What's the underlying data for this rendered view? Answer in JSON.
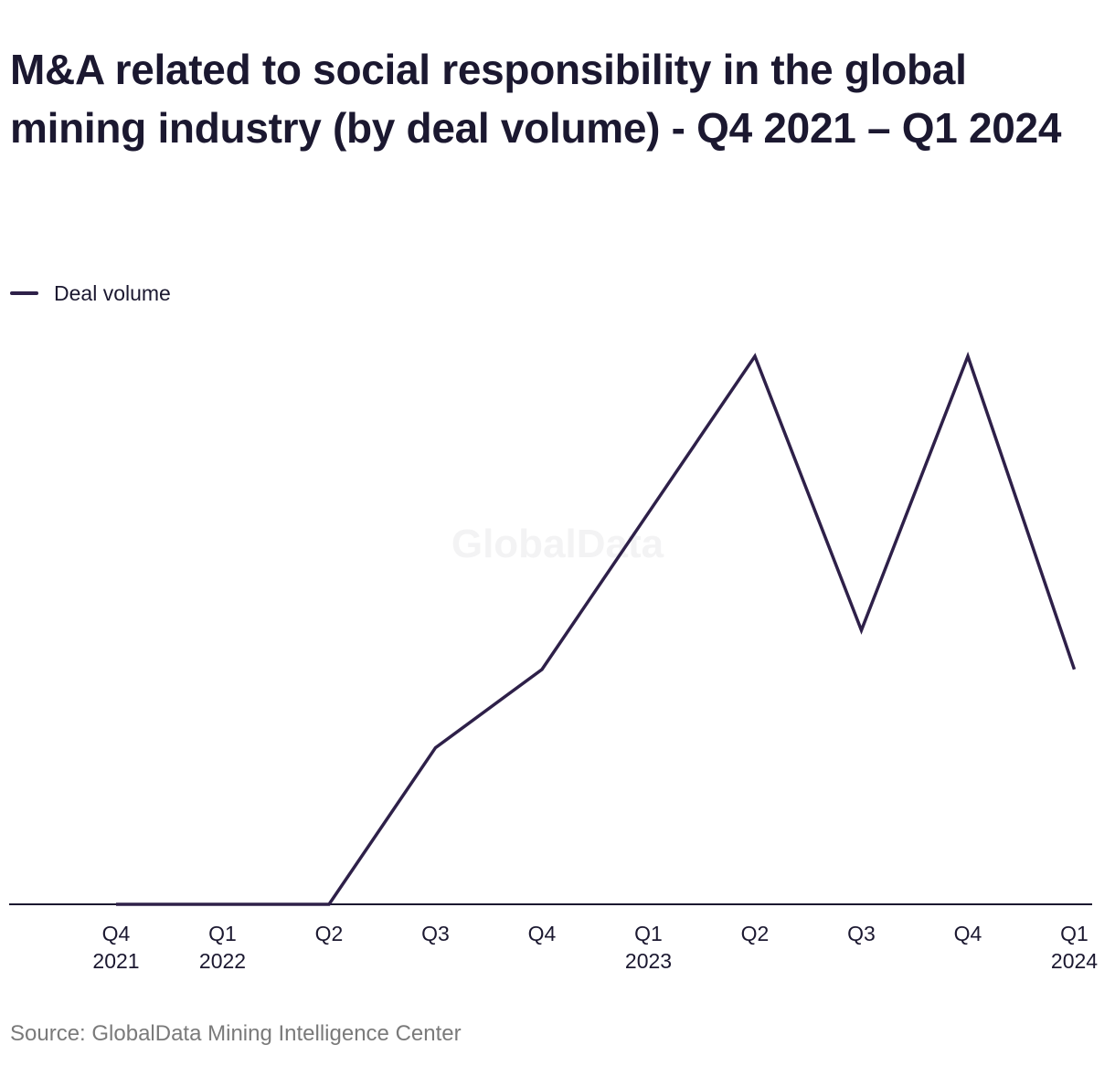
{
  "title": "M&A related to social responsibility in the global mining industry (by deal volume) - Q4 2021 – Q1 2024",
  "legend": {
    "label": "Deal volume"
  },
  "watermark": "GlobalData",
  "source": "Source: GlobalData Mining Intelligence Center",
  "colors": {
    "line": "#2e2049",
    "axis": "#1b1830",
    "text": "#1b1830",
    "source": "#7a7a7a"
  },
  "chart_data": {
    "type": "line",
    "categories": [
      [
        "Q4",
        "2021"
      ],
      [
        "Q1",
        "2022"
      ],
      [
        "Q2",
        ""
      ],
      [
        "Q3",
        ""
      ],
      [
        "Q4",
        ""
      ],
      [
        "Q1",
        "2023"
      ],
      [
        "Q2",
        ""
      ],
      [
        "Q3",
        ""
      ],
      [
        "Q4",
        ""
      ],
      [
        "Q1",
        "2024"
      ]
    ],
    "series": [
      {
        "name": "Deal volume",
        "values": [
          0,
          0,
          0,
          4,
          6,
          10,
          14,
          7,
          14,
          6
        ]
      }
    ],
    "ylim": [
      0,
      14
    ],
    "grid": false,
    "y_axis_labels": false,
    "legend_position": "top-left"
  }
}
